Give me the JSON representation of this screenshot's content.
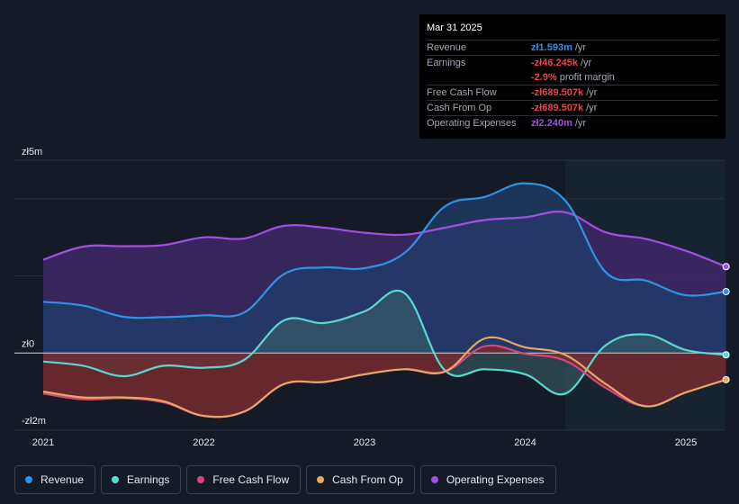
{
  "chart_data": {
    "type": "area",
    "title": "",
    "currency_unit": "zł",
    "ylim": [
      -2,
      5
    ],
    "y_ticks": [
      {
        "value": 5,
        "label": "zł5m"
      },
      {
        "value": 0,
        "label": "zł0"
      },
      {
        "value": -2,
        "label": "-zł2m"
      }
    ],
    "xlim": [
      2021.0,
      2025.25
    ],
    "x_ticks": [
      {
        "value": 2021,
        "label": "2021"
      },
      {
        "value": 2022,
        "label": "2022"
      },
      {
        "value": 2023,
        "label": "2023"
      },
      {
        "value": 2024,
        "label": "2024"
      },
      {
        "value": 2025,
        "label": "2025"
      }
    ],
    "forecast_start": 2024.25,
    "series": [
      {
        "name": "Operating Expenses",
        "key": "opex",
        "color": "#a34fe6",
        "fill": "#3d2866",
        "fill_opacity": 0.85,
        "points": [
          [
            2021.0,
            2.42
          ],
          [
            2021.25,
            2.76
          ],
          [
            2021.5,
            2.77
          ],
          [
            2021.75,
            2.8
          ],
          [
            2022.0,
            3.0
          ],
          [
            2022.25,
            2.97
          ],
          [
            2022.5,
            3.3
          ],
          [
            2022.75,
            3.25
          ],
          [
            2023.0,
            3.12
          ],
          [
            2023.25,
            3.07
          ],
          [
            2023.5,
            3.25
          ],
          [
            2023.75,
            3.45
          ],
          [
            2024.0,
            3.52
          ],
          [
            2024.25,
            3.65
          ],
          [
            2024.5,
            3.13
          ],
          [
            2024.75,
            2.96
          ],
          [
            2025.0,
            2.65
          ],
          [
            2025.25,
            2.24
          ]
        ]
      },
      {
        "name": "Revenue",
        "key": "revenue",
        "color": "#2e93e8",
        "fill": "#1f3e6a",
        "fill_opacity": 0.75,
        "points": [
          [
            2021.0,
            1.33
          ],
          [
            2021.25,
            1.23
          ],
          [
            2021.5,
            0.94
          ],
          [
            2021.75,
            0.93
          ],
          [
            2022.0,
            0.98
          ],
          [
            2022.25,
            1.05
          ],
          [
            2022.5,
            2.05
          ],
          [
            2022.75,
            2.22
          ],
          [
            2023.0,
            2.2
          ],
          [
            2023.25,
            2.6
          ],
          [
            2023.5,
            3.8
          ],
          [
            2023.75,
            4.05
          ],
          [
            2024.0,
            4.4
          ],
          [
            2024.25,
            3.95
          ],
          [
            2024.5,
            2.1
          ],
          [
            2024.75,
            1.88
          ],
          [
            2025.0,
            1.5
          ],
          [
            2025.25,
            1.593
          ]
        ]
      },
      {
        "name": "Earnings",
        "key": "earnings",
        "color": "#5ad8d2",
        "fill": "#3c6468",
        "fill_opacity": 0.55,
        "points": [
          [
            2021.0,
            -0.22
          ],
          [
            2021.25,
            -0.33
          ],
          [
            2021.5,
            -0.6
          ],
          [
            2021.75,
            -0.33
          ],
          [
            2022.0,
            -0.38
          ],
          [
            2022.25,
            -0.18
          ],
          [
            2022.5,
            0.85
          ],
          [
            2022.75,
            0.78
          ],
          [
            2023.0,
            1.08
          ],
          [
            2023.25,
            1.55
          ],
          [
            2023.5,
            -0.45
          ],
          [
            2023.75,
            -0.42
          ],
          [
            2024.0,
            -0.55
          ],
          [
            2024.25,
            -1.05
          ],
          [
            2024.5,
            0.2
          ],
          [
            2024.75,
            0.48
          ],
          [
            2025.0,
            0.08
          ],
          [
            2025.25,
            -0.046
          ]
        ]
      },
      {
        "name": "Free Cash Flow",
        "key": "fcf",
        "color": "#d2477e",
        "fill": "#7a2a30",
        "fill_opacity": 0.8,
        "points": [
          [
            2021.0,
            -1.05
          ],
          [
            2021.25,
            -1.2
          ],
          [
            2021.5,
            -1.17
          ],
          [
            2021.75,
            -1.28
          ],
          [
            2022.0,
            -1.63
          ],
          [
            2022.25,
            -1.52
          ],
          [
            2022.5,
            -0.8
          ],
          [
            2022.75,
            -0.75
          ],
          [
            2023.0,
            -0.55
          ],
          [
            2023.25,
            -0.42
          ],
          [
            2023.5,
            -0.48
          ],
          [
            2023.75,
            0.18
          ],
          [
            2024.0,
            -0.02
          ],
          [
            2024.25,
            -0.2
          ],
          [
            2024.5,
            -0.9
          ],
          [
            2024.75,
            -1.38
          ],
          [
            2025.0,
            -1.02
          ],
          [
            2025.25,
            -0.69
          ]
        ]
      },
      {
        "name": "Cash From Op",
        "key": "cfo",
        "color": "#e8a865",
        "fill": "#4a2a28",
        "fill_opacity": 0.0,
        "points": [
          [
            2021.0,
            -1.0
          ],
          [
            2021.25,
            -1.15
          ],
          [
            2021.5,
            -1.15
          ],
          [
            2021.75,
            -1.25
          ],
          [
            2022.0,
            -1.63
          ],
          [
            2022.25,
            -1.52
          ],
          [
            2022.5,
            -0.8
          ],
          [
            2022.75,
            -0.75
          ],
          [
            2023.0,
            -0.55
          ],
          [
            2023.25,
            -0.42
          ],
          [
            2023.5,
            -0.48
          ],
          [
            2023.75,
            0.38
          ],
          [
            2024.0,
            0.15
          ],
          [
            2024.25,
            -0.05
          ],
          [
            2024.5,
            -0.8
          ],
          [
            2024.75,
            -1.38
          ],
          [
            2025.0,
            -1.02
          ],
          [
            2025.25,
            -0.69
          ]
        ]
      }
    ]
  },
  "tooltip": {
    "date": "Mar 31 2025",
    "rows": [
      {
        "label": "Revenue",
        "value": "zł1.593m",
        "unit": "/yr",
        "color": "#2e93e8"
      },
      {
        "label": "Earnings",
        "value": "-zł46.245k",
        "unit": "/yr",
        "color": "#e84545"
      },
      {
        "label": "",
        "value": "-2.9%",
        "unit": "profit margin",
        "color": "#e84545"
      },
      {
        "label": "Free Cash Flow",
        "value": "-zł689.507k",
        "unit": "/yr",
        "color": "#e84545"
      },
      {
        "label": "Cash From Op",
        "value": "-zł689.507k",
        "unit": "/yr",
        "color": "#e84545"
      },
      {
        "label": "Operating Expenses",
        "value": "zł2.240m",
        "unit": "/yr",
        "color": "#a34fe6"
      }
    ]
  },
  "legend": [
    {
      "label": "Revenue",
      "color": "#2e93e8"
    },
    {
      "label": "Earnings",
      "color": "#5ad8d2"
    },
    {
      "label": "Free Cash Flow",
      "color": "#d2477e"
    },
    {
      "label": "Cash From Op",
      "color": "#e8a865"
    },
    {
      "label": "Operating Expenses",
      "color": "#a34fe6"
    }
  ]
}
